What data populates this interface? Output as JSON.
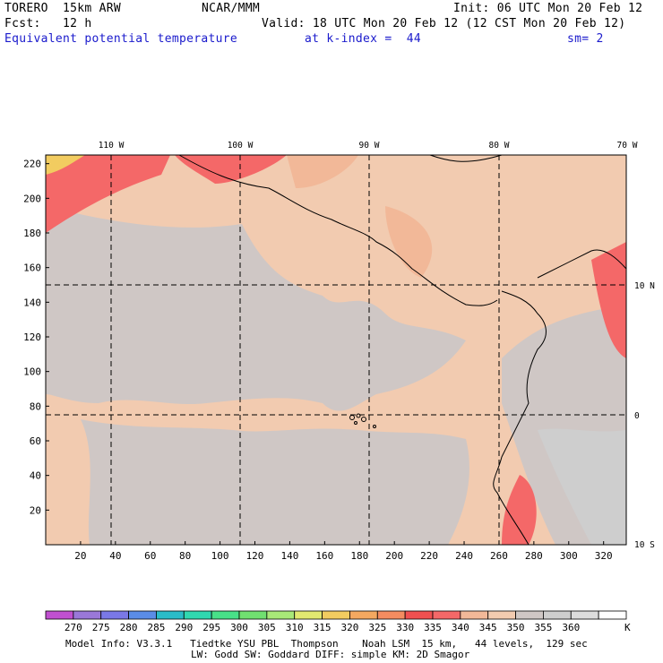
{
  "header": {
    "model": "TORERO  15km ARW",
    "org": "NCAR/MMM",
    "init": "Init: 06 UTC Mon 20 Feb 12",
    "fcst": "Fcst:   12 h",
    "valid": "Valid: 18 UTC Mon 20 Feb 12 (12 CST Mon 20 Feb 12)",
    "field": "Equivalent potential temperature",
    "level": "at k-index =  44",
    "smooth": "sm= 2"
  },
  "map": {
    "x_grid_labels": [
      "20",
      "40",
      "60",
      "80",
      "100",
      "120",
      "140",
      "160",
      "180",
      "200",
      "220",
      "240",
      "260",
      "280",
      "300",
      "320"
    ],
    "y_grid_labels": [
      "20",
      "40",
      "60",
      "80",
      "100",
      "120",
      "140",
      "160",
      "180",
      "200",
      "220"
    ],
    "lon_labels": [
      "110 W",
      "100 W",
      "90 W",
      "80 W",
      "70 W"
    ],
    "lat_labels": [
      "10 N",
      "0",
      "10 S"
    ],
    "x_range": [
      0,
      333
    ],
    "y_range": [
      0,
      225
    ]
  },
  "colorbar": {
    "labels": [
      "270",
      "275",
      "280",
      "285",
      "290",
      "295",
      "300",
      "305",
      "310",
      "315",
      "320",
      "325",
      "330",
      "335",
      "340",
      "345",
      "350",
      "355",
      "360"
    ],
    "unit": "K",
    "colors": [
      "#c050d0",
      "#9a78d8",
      "#7a78e6",
      "#5a8ce6",
      "#2abcc8",
      "#30d8b0",
      "#48e088",
      "#70e070",
      "#a8e878",
      "#e2e870",
      "#f2cc60",
      "#f4a860",
      "#f48c60",
      "#f05050",
      "#f46868",
      "#f2b898",
      "#f2cbb0",
      "#cfc7c5",
      "#cecece",
      "#dcdcdc",
      "#ffffff"
    ]
  },
  "footer": {
    "line1": "Model Info: V3.3.1   Tiedtke YSU PBL  Thompson    Noah LSM  15 km,   44 levels,  129 sec",
    "line2": "LW: Godd SW: Goddard DIFF: simple KM: 2D Smagor"
  }
}
